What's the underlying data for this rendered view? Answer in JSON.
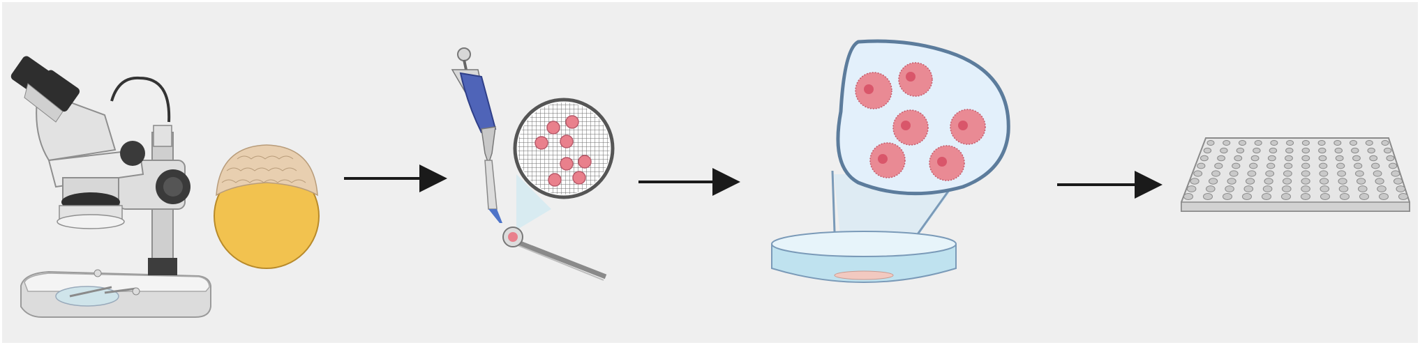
{
  "figure": {
    "steps": [
      {
        "id": "microscope-embryo",
        "icon": "stereo-microscope-icon"
      },
      {
        "id": "pipette-transfer",
        "icon": "micropipette-icon"
      },
      {
        "id": "culture-dish",
        "icon": "petri-dish-icon"
      },
      {
        "id": "well-plate",
        "icon": "96-well-plate-icon"
      }
    ],
    "arrows": 3,
    "colors": {
      "background": "#efefef",
      "arrow": "#1a1a1a",
      "cell_fill": "#e98a94",
      "cell_nucleus": "#d9566a",
      "yolk": "#f2c24f",
      "pipette": "#4f64b8",
      "lens_fill": "#e3f0fb",
      "dish_liquid": "#bfe2ef"
    }
  }
}
